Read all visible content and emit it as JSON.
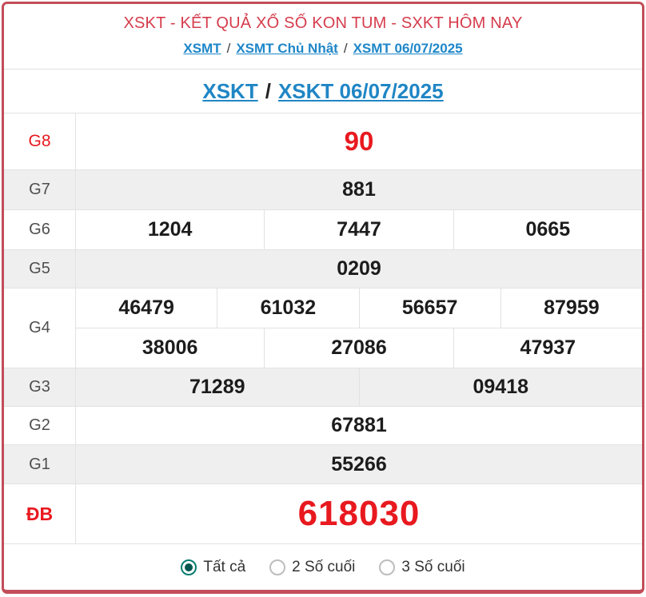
{
  "header": {
    "title": "XSKT - KẾT QUẢ XỔ SỐ KON TUM - SXKT HÔM NAY",
    "breadcrumb": {
      "separator": "/",
      "items": [
        {
          "label": "XSMT"
        },
        {
          "label": "XSMT Chủ Nhật"
        },
        {
          "label": "XSMT 06/07/2025"
        }
      ]
    }
  },
  "subheader": {
    "separator": "/",
    "links": [
      {
        "label": "XSKT"
      },
      {
        "label": "XSKT 06/07/2025"
      }
    ]
  },
  "results": {
    "rows": [
      {
        "label": "G8",
        "cells": [
          "90"
        ]
      },
      {
        "label": "G7",
        "cells": [
          "881"
        ]
      },
      {
        "label": "G6",
        "cells": [
          "1204",
          "7447",
          "0665"
        ]
      },
      {
        "label": "G5",
        "cells": [
          "0209"
        ]
      },
      {
        "label": "G4",
        "cells_line1": [
          "46479",
          "61032",
          "56657",
          "87959"
        ],
        "cells_line2": [
          "38006",
          "27086",
          "47937"
        ]
      },
      {
        "label": "G3",
        "cells": [
          "71289",
          "09418"
        ]
      },
      {
        "label": "G2",
        "cells": [
          "67881"
        ]
      },
      {
        "label": "G1",
        "cells": [
          "55266"
        ]
      },
      {
        "label": "ĐB",
        "cells": [
          "618030"
        ]
      }
    ]
  },
  "filter": {
    "options": [
      {
        "label": "Tất cả",
        "selected": true
      },
      {
        "label": "2 Số cuối",
        "selected": false
      },
      {
        "label": "3 Số cuối",
        "selected": false
      }
    ]
  },
  "colors": {
    "accent_red": "#e8191f",
    "title_red": "#d53c4c",
    "link_blue": "#1d86c8",
    "border_red": "#c24d59",
    "radio_teal": "#067c6f",
    "row_gray": "#efefef"
  }
}
